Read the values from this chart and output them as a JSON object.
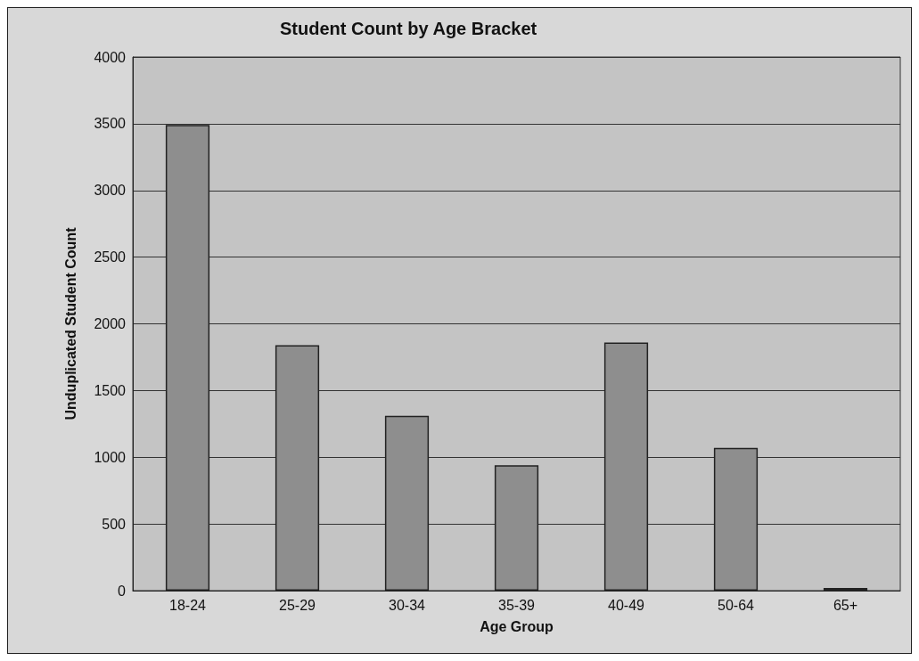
{
  "chart_data": {
    "type": "bar",
    "title": "Student Count by Age Bracket",
    "xlabel": "Age Group",
    "ylabel": "Unduplicated Student Count",
    "categories": [
      "18-24",
      "25-29",
      "30-34",
      "35-39",
      "40-49",
      "50-64",
      "65+"
    ],
    "values": [
      3490,
      1840,
      1310,
      940,
      1860,
      1070,
      20
    ],
    "color": "#8e8e8e",
    "ylim": [
      0,
      4000
    ],
    "yticks": [
      0,
      500,
      1000,
      1500,
      2000,
      2500,
      3000,
      3500,
      4000
    ],
    "grid": "y"
  }
}
